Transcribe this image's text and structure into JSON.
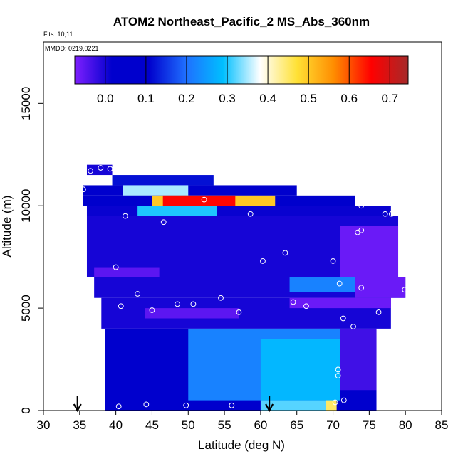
{
  "chart_data": {
    "type": "heatmap",
    "title": "ATOM2 Northeast_Pacific_2 MS_Abs_360nm",
    "flights_label": "Flts: 10,11",
    "mmdd_label": "MMDD: 0219,0221",
    "xlabel": "Latitude (deg N)",
    "ylabel": "Altitude (m)",
    "xlim": [
      30,
      85
    ],
    "ylim": [
      0,
      18000
    ],
    "x_ticks": [
      30,
      35,
      40,
      45,
      50,
      55,
      60,
      65,
      70,
      75,
      80,
      85
    ],
    "y_ticks": [
      0,
      5000,
      10000,
      15000
    ],
    "colorbar": {
      "range": [
        -0.075,
        0.745
      ],
      "ticks": [
        0.0,
        0.1,
        0.2,
        0.3,
        0.4,
        0.5,
        0.6,
        0.7
      ],
      "tick_labels": [
        "0.0",
        "0.1",
        "0.2",
        "0.3",
        "0.4",
        "0.5",
        "0.6",
        "0.7"
      ],
      "colors": [
        "#7f1fff",
        "#0000cd",
        "#0000cd",
        "#1f6fff",
        "#00bfff",
        "#ffffff",
        "#ffe135",
        "#ff8c00",
        "#ff0000",
        "#a52a2a"
      ]
    },
    "regions": [
      {
        "lat": [
          36,
          39.5
        ],
        "alt": [
          11500,
          12000
        ],
        "value": 0.0
      },
      {
        "lat": [
          39.5,
          53.5
        ],
        "alt": [
          11000,
          11500
        ],
        "value": 0.12
      },
      {
        "lat": [
          35.5,
          65
        ],
        "alt": [
          10500,
          11000
        ],
        "value": 0.08
      },
      {
        "lat": [
          41,
          50
        ],
        "alt": [
          10500,
          11000
        ],
        "value": 0.35
      },
      {
        "lat": [
          35.5,
          73
        ],
        "alt": [
          10000,
          10500
        ],
        "value": 0.02
      },
      {
        "lat": [
          45,
          62
        ],
        "alt": [
          10000,
          10500
        ],
        "value": 0.5
      },
      {
        "lat": [
          46.5,
          56.5
        ],
        "alt": [
          10000,
          10500
        ],
        "value": 0.65
      },
      {
        "lat": [
          36,
          78
        ],
        "alt": [
          9500,
          10000
        ],
        "value": 0.01
      },
      {
        "lat": [
          43,
          54
        ],
        "alt": [
          9500,
          10000
        ],
        "value": 0.3
      },
      {
        "lat": [
          36,
          79
        ],
        "alt": [
          6500,
          9500
        ],
        "value": 0.0
      },
      {
        "lat": [
          71,
          79
        ],
        "alt": [
          6500,
          9000
        ],
        "value": -0.06
      },
      {
        "lat": [
          37,
          46
        ],
        "alt": [
          6500,
          7000
        ],
        "value": -0.05
      },
      {
        "lat": [
          37,
          80
        ],
        "alt": [
          5500,
          6500
        ],
        "value": 0.0
      },
      {
        "lat": [
          64,
          74
        ],
        "alt": [
          5800,
          6500
        ],
        "value": 0.22
      },
      {
        "lat": [
          73,
          80
        ],
        "alt": [
          5500,
          6500
        ],
        "value": -0.06
      },
      {
        "lat": [
          38,
          78
        ],
        "alt": [
          4000,
          5500
        ],
        "value": 0.0
      },
      {
        "lat": [
          44,
          57
        ],
        "alt": [
          4500,
          5000
        ],
        "value": -0.05
      },
      {
        "lat": [
          64,
          78
        ],
        "alt": [
          5000,
          5500
        ],
        "value": -0.06
      },
      {
        "lat": [
          38.5,
          76
        ],
        "alt": [
          0,
          4000
        ],
        "value": 0.05
      },
      {
        "lat": [
          50,
          71
        ],
        "alt": [
          500,
          4000
        ],
        "value": 0.22
      },
      {
        "lat": [
          60,
          71
        ],
        "alt": [
          500,
          3500
        ],
        "value": 0.28
      },
      {
        "lat": [
          71,
          76
        ],
        "alt": [
          1000,
          4000
        ],
        "value": -0.03
      },
      {
        "lat": [
          60,
          70
        ],
        "alt": [
          0,
          500
        ],
        "value": 0.32
      },
      {
        "lat": [
          69,
          70.5
        ],
        "alt": [
          0,
          500
        ],
        "value": 0.45
      }
    ],
    "points": [
      {
        "lat": 36.5,
        "alt": 11700
      },
      {
        "lat": 37.9,
        "alt": 11850
      },
      {
        "lat": 39.2,
        "alt": 11800
      },
      {
        "lat": 35.5,
        "alt": 10800
      },
      {
        "lat": 52.2,
        "alt": 10300
      },
      {
        "lat": 58.6,
        "alt": 9600
      },
      {
        "lat": 41.3,
        "alt": 9500
      },
      {
        "lat": 46.6,
        "alt": 9200
      },
      {
        "lat": 67.8,
        "alt": 10700
      },
      {
        "lat": 73.9,
        "alt": 10000
      },
      {
        "lat": 77.2,
        "alt": 9600
      },
      {
        "lat": 78.1,
        "alt": 9600
      },
      {
        "lat": 73.4,
        "alt": 8700
      },
      {
        "lat": 73.9,
        "alt": 8800
      },
      {
        "lat": 63.4,
        "alt": 7700
      },
      {
        "lat": 60.3,
        "alt": 7300
      },
      {
        "lat": 70.0,
        "alt": 7300
      },
      {
        "lat": 40.0,
        "alt": 7000
      },
      {
        "lat": 70.9,
        "alt": 6200
      },
      {
        "lat": 73.9,
        "alt": 6000
      },
      {
        "lat": 79.9,
        "alt": 5900
      },
      {
        "lat": 43.0,
        "alt": 5700
      },
      {
        "lat": 54.5,
        "alt": 5500
      },
      {
        "lat": 64.5,
        "alt": 5300
      },
      {
        "lat": 66.3,
        "alt": 5100
      },
      {
        "lat": 48.5,
        "alt": 5200
      },
      {
        "lat": 50.7,
        "alt": 5200
      },
      {
        "lat": 40.7,
        "alt": 5100
      },
      {
        "lat": 45.0,
        "alt": 4900
      },
      {
        "lat": 57.0,
        "alt": 4800
      },
      {
        "lat": 76.3,
        "alt": 4800
      },
      {
        "lat": 71.4,
        "alt": 4500
      },
      {
        "lat": 72.8,
        "alt": 4100
      },
      {
        "lat": 70.7,
        "alt": 2000
      },
      {
        "lat": 70.7,
        "alt": 1700
      },
      {
        "lat": 70.3,
        "alt": 400
      },
      {
        "lat": 71.5,
        "alt": 500
      },
      {
        "lat": 40.4,
        "alt": 200
      },
      {
        "lat": 44.2,
        "alt": 300
      },
      {
        "lat": 49.7,
        "alt": 250
      },
      {
        "lat": 56.0,
        "alt": 250
      }
    ],
    "arrows_at_lat": [
      34.7,
      61.2
    ]
  }
}
